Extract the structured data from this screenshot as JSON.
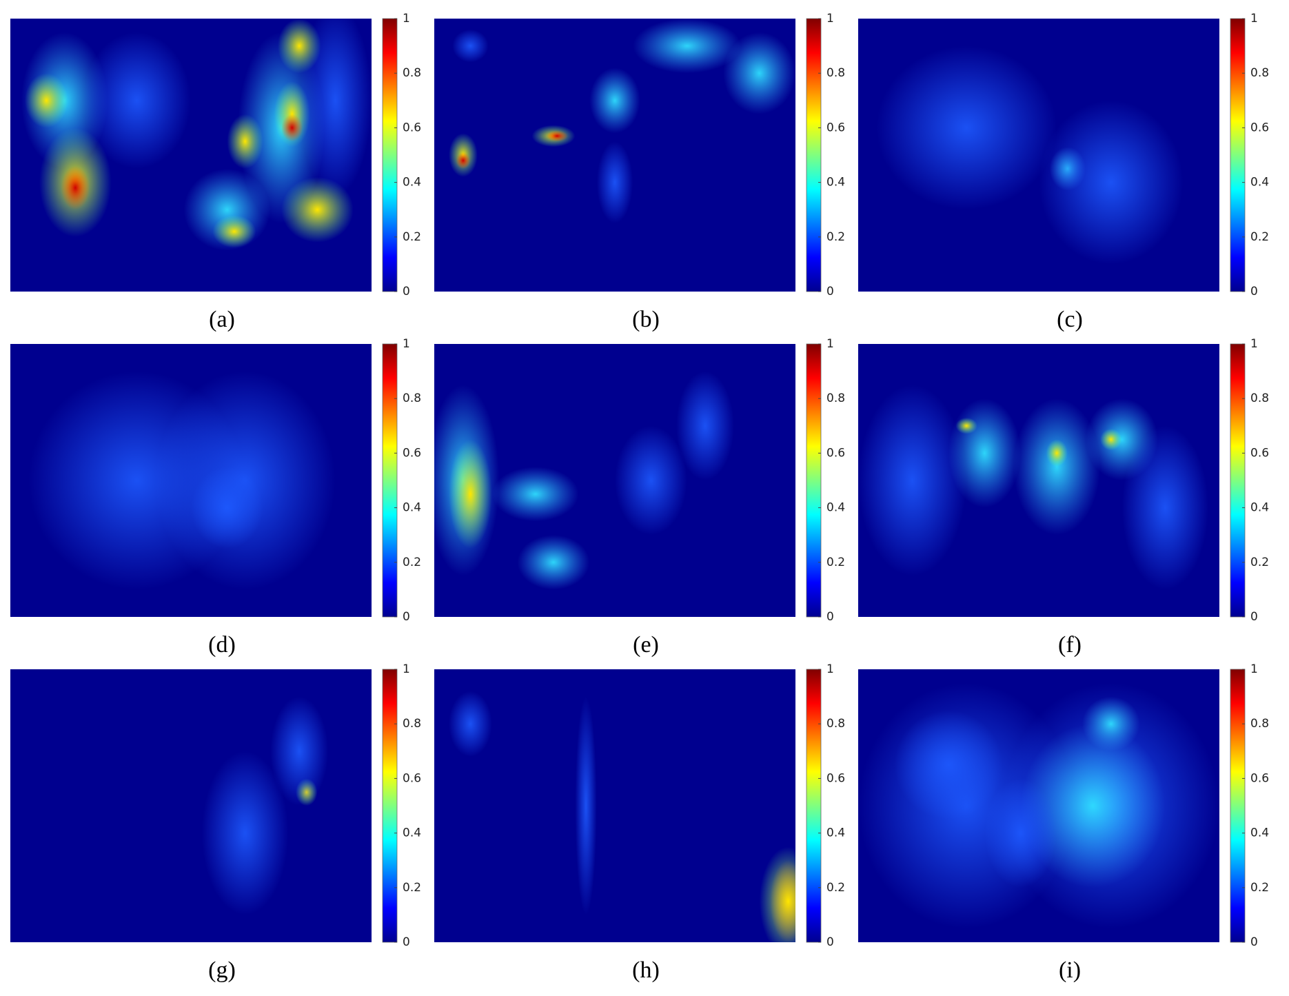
{
  "panels": [
    {
      "label": "(a)"
    },
    {
      "label": "(b)"
    },
    {
      "label": "(c)"
    },
    {
      "label": "(d)"
    },
    {
      "label": "(e)"
    },
    {
      "label": "(f)"
    },
    {
      "label": "(g)"
    },
    {
      "label": "(h)"
    },
    {
      "label": "(i)"
    }
  ],
  "colorbar": {
    "ticks": [
      0,
      0.2,
      0.4,
      0.6,
      0.8,
      1
    ]
  }
}
